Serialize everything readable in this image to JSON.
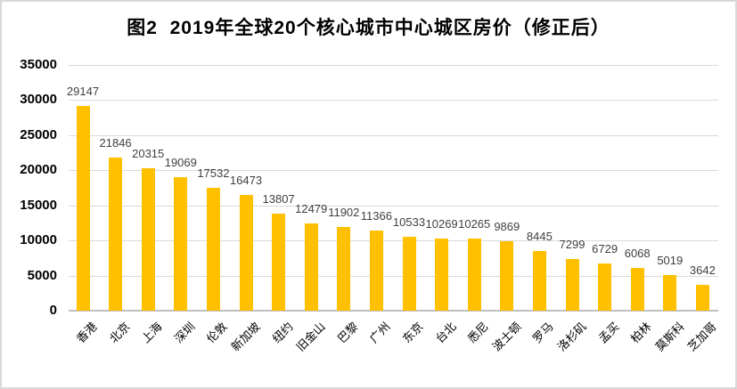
{
  "figure": {
    "title": "图2  2019年全球20个核心城市中心城区房价（修正后）"
  },
  "chart_data": {
    "type": "bar",
    "title": "图2  2019年全球20个核心城市中心城区房价（修正后）",
    "categories": [
      "香港",
      "北京",
      "上海",
      "深圳",
      "伦敦",
      "新加坡",
      "纽约",
      "旧金山",
      "巴黎",
      "广州",
      "东京",
      "台北",
      "悉尼",
      "波士顿",
      "罗马",
      "洛杉矶",
      "孟买",
      "柏林",
      "莫斯科",
      "芝加哥"
    ],
    "values": [
      29147,
      21846,
      20315,
      19069,
      17532,
      16473,
      13807,
      12479,
      11902,
      11366,
      10533,
      10269,
      10265,
      9869,
      8445,
      7299,
      6729,
      6068,
      5019,
      3642
    ],
    "xlabel": "",
    "ylabel": "",
    "ylim": [
      0,
      35000
    ],
    "yticks": [
      0,
      5000,
      10000,
      15000,
      20000,
      25000,
      30000,
      35000
    ],
    "grid": true,
    "legend": "none",
    "data_labels": true,
    "bar_color": "#FFC000",
    "gridline_color": "#D9D9D9",
    "axis_color": "#BFBFBF",
    "label_color": "#3F3F3F",
    "x_label_rotation": 45
  }
}
